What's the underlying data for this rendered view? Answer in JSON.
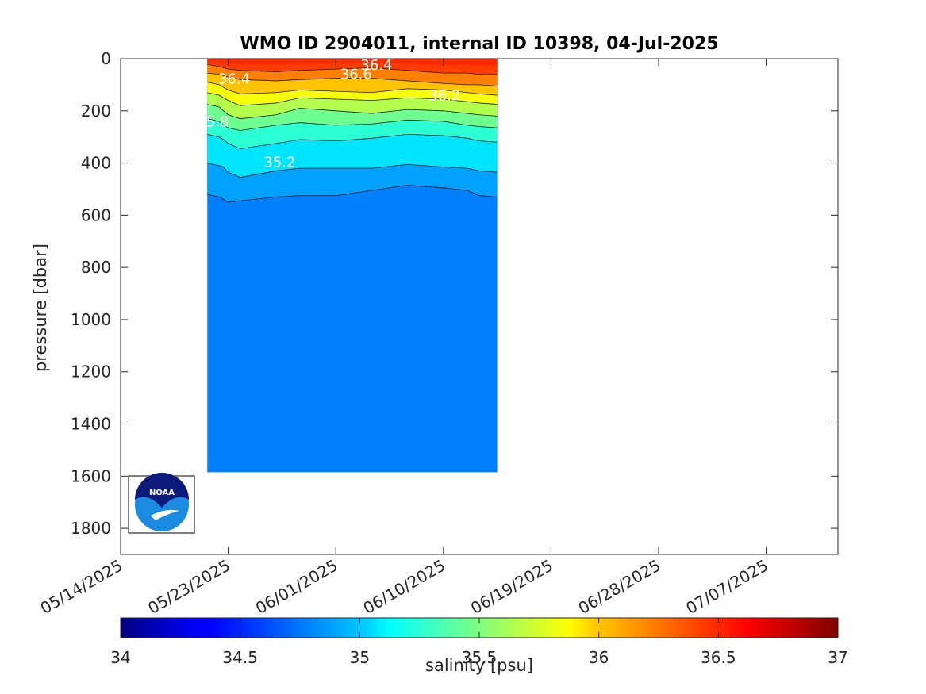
{
  "chart_data": {
    "type": "contourf",
    "title": "WMO ID 2904011, internal ID 10398, 04-Jul-2025",
    "ylabel": "pressure [dbar]",
    "xlabel": "",
    "y_reversed": true,
    "ylim": [
      0,
      1900
    ],
    "y_ticks": [
      "0",
      "200",
      "400",
      "600",
      "800",
      "1000",
      "1200",
      "1400",
      "1600",
      "1800"
    ],
    "x_ticks": [
      "05/14/2025",
      "05/23/2025",
      "06/01/2025",
      "06/10/2025",
      "06/19/2025",
      "06/28/2025",
      "07/07/2025"
    ],
    "x_range_days": [
      0,
      60
    ],
    "grid": false,
    "data_x_days": [
      7.25,
      8.25,
      8.6,
      9.0,
      10.0,
      13.0,
      15.0,
      18.0,
      21.0,
      24.0,
      27.0,
      29.0,
      30.0,
      31.5
    ],
    "data_bottom_dbar": [
      1585,
      1585,
      1585,
      1585,
      1585,
      1585,
      1585,
      1585,
      1585,
      1585,
      1585,
      1585,
      1585,
      1585
    ],
    "levels": [
      {
        "salinity": 36.4,
        "depth": [
          22,
          30,
          35,
          40,
          45,
          50,
          45,
          40,
          35,
          45,
          55,
          55,
          60,
          60
        ]
      },
      {
        "salinity": 36.2,
        "depth": [
          55,
          60,
          65,
          70,
          80,
          85,
          80,
          75,
          75,
          85,
          95,
          100,
          100,
          105
        ]
      },
      {
        "salinity": 36.0,
        "depth": [
          90,
          100,
          110,
          120,
          135,
          130,
          120,
          125,
          130,
          115,
          120,
          130,
          135,
          140
        ]
      },
      {
        "salinity": 35.8,
        "depth": [
          130,
          140,
          150,
          160,
          180,
          170,
          150,
          155,
          160,
          150,
          155,
          165,
          170,
          175
        ]
      },
      {
        "salinity": 35.6,
        "depth": [
          175,
          185,
          200,
          215,
          230,
          215,
          190,
          200,
          210,
          195,
          200,
          210,
          215,
          220
        ]
      },
      {
        "salinity": 35.4,
        "depth": [
          230,
          240,
          255,
          265,
          275,
          255,
          245,
          255,
          250,
          235,
          240,
          255,
          260,
          265
        ]
      },
      {
        "salinity": 35.2,
        "depth": [
          290,
          300,
          310,
          325,
          345,
          325,
          310,
          315,
          305,
          290,
          295,
          305,
          315,
          320
        ]
      },
      {
        "salinity": 35.0,
        "depth": [
          400,
          410,
          415,
          435,
          455,
          430,
          420,
          420,
          420,
          405,
          415,
          420,
          430,
          435
        ]
      },
      {
        "salinity": 34.8,
        "depth": [
          520,
          530,
          540,
          550,
          545,
          530,
          525,
          525,
          505,
          485,
          495,
          505,
          525,
          530
        ]
      }
    ],
    "surface_salinity": 36.5,
    "contour_labels": [
      {
        "text": "36.4",
        "day": 9.5,
        "dbar": 80
      },
      {
        "text": "36.6",
        "day": 19.7,
        "dbar": 62
      },
      {
        "text": "36.4",
        "day": 21.4,
        "dbar": 28
      },
      {
        "text": "36.2",
        "day": 27.1,
        "dbar": 145
      },
      {
        "text": "5.8",
        "day": 8.1,
        "dbar": 245
      },
      {
        "text": "35.2",
        "day": 13.3,
        "dbar": 400
      }
    ],
    "colorbar": {
      "label": "salinity [psu]",
      "min": 34,
      "max": 37,
      "ticks": [
        "34",
        "34.5",
        "35",
        "35.5",
        "36",
        "36.5",
        "37"
      ],
      "colormap": "jet"
    },
    "logo_text": "NOAA"
  }
}
